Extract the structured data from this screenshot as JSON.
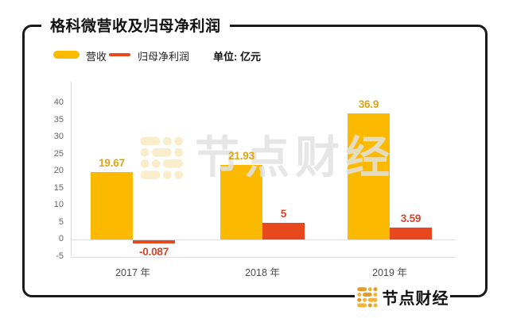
{
  "card": {
    "title": "格科微营收及归母净利润"
  },
  "legend": {
    "revenue_label": "营收",
    "profit_label": "归母净利润",
    "unit_label": "单位: 亿元"
  },
  "chart_data": {
    "type": "bar",
    "title": "格科微营收及归母净利润",
    "unit": "亿元",
    "categories": [
      "2017 年",
      "2018 年",
      "2019 年"
    ],
    "series": [
      {
        "name": "营收",
        "color": "#FBBA00",
        "label_color": "#DEA50F",
        "values": [
          19.67,
          21.93,
          36.9
        ],
        "display": [
          "19.67",
          "21.93",
          "36.9"
        ]
      },
      {
        "name": "归母净利润",
        "color": "#E8481E",
        "label_color": "#D4452B",
        "values": [
          -0.087,
          5,
          3.59
        ],
        "display": [
          "-0.087",
          "5",
          "3.59"
        ]
      }
    ],
    "ylim": [
      -5,
      40
    ],
    "yticks": [
      40,
      35,
      30,
      25,
      20,
      15,
      10,
      5,
      0,
      -5
    ],
    "gridlines_at": [
      0,
      -5
    ],
    "legend_position": "top-left",
    "grid": "partial"
  },
  "watermark": {
    "text": "节点财经"
  },
  "footer": {
    "brand": "节点财经"
  }
}
